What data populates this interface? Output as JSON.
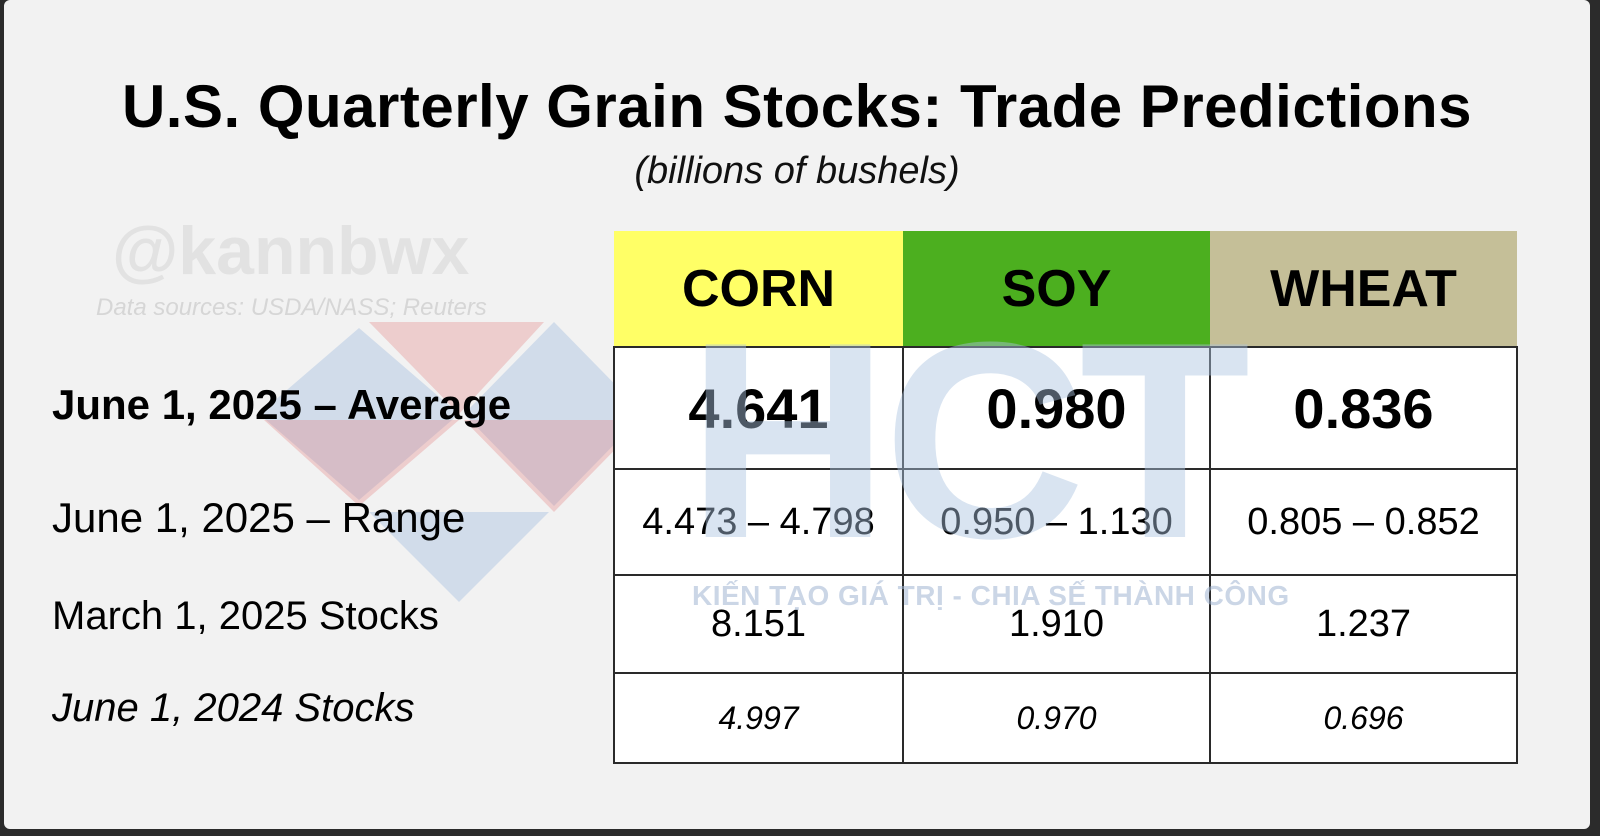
{
  "chart_data": {
    "type": "table",
    "title": "U.S. Quarterly Grain Stocks: Trade Predictions",
    "subtitle": "(billions of bushels)",
    "columns": [
      {
        "label": "CORN",
        "color": "#ffff66"
      },
      {
        "label": "SOY",
        "color": "#4caf1f"
      },
      {
        "label": "WHEAT",
        "color": "#c5bf98"
      }
    ],
    "rows": [
      {
        "label": "June 1, 2025 – Average",
        "values": [
          "4.641",
          "0.980",
          "0.836"
        ]
      },
      {
        "label": "June 1, 2025 – Range",
        "values": [
          "4.473 – 4.798",
          "0.950 – 1.130",
          "0.805 – 0.852"
        ]
      },
      {
        "label": "March 1, 2025 Stocks",
        "values": [
          "8.151",
          "1.910",
          "1.237"
        ]
      },
      {
        "label": "June 1, 2024 Stocks",
        "values": [
          "4.997",
          "0.970",
          "0.696"
        ]
      }
    ]
  },
  "watermarks": {
    "handle": "@kannbwx",
    "sources": "Data sources: USDA/NASS; Reuters",
    "logo_text": "HCT",
    "slogan": "KIẾN TẠO GIÁ TRỊ - CHIA SẾ THÀNH CÔNG"
  }
}
